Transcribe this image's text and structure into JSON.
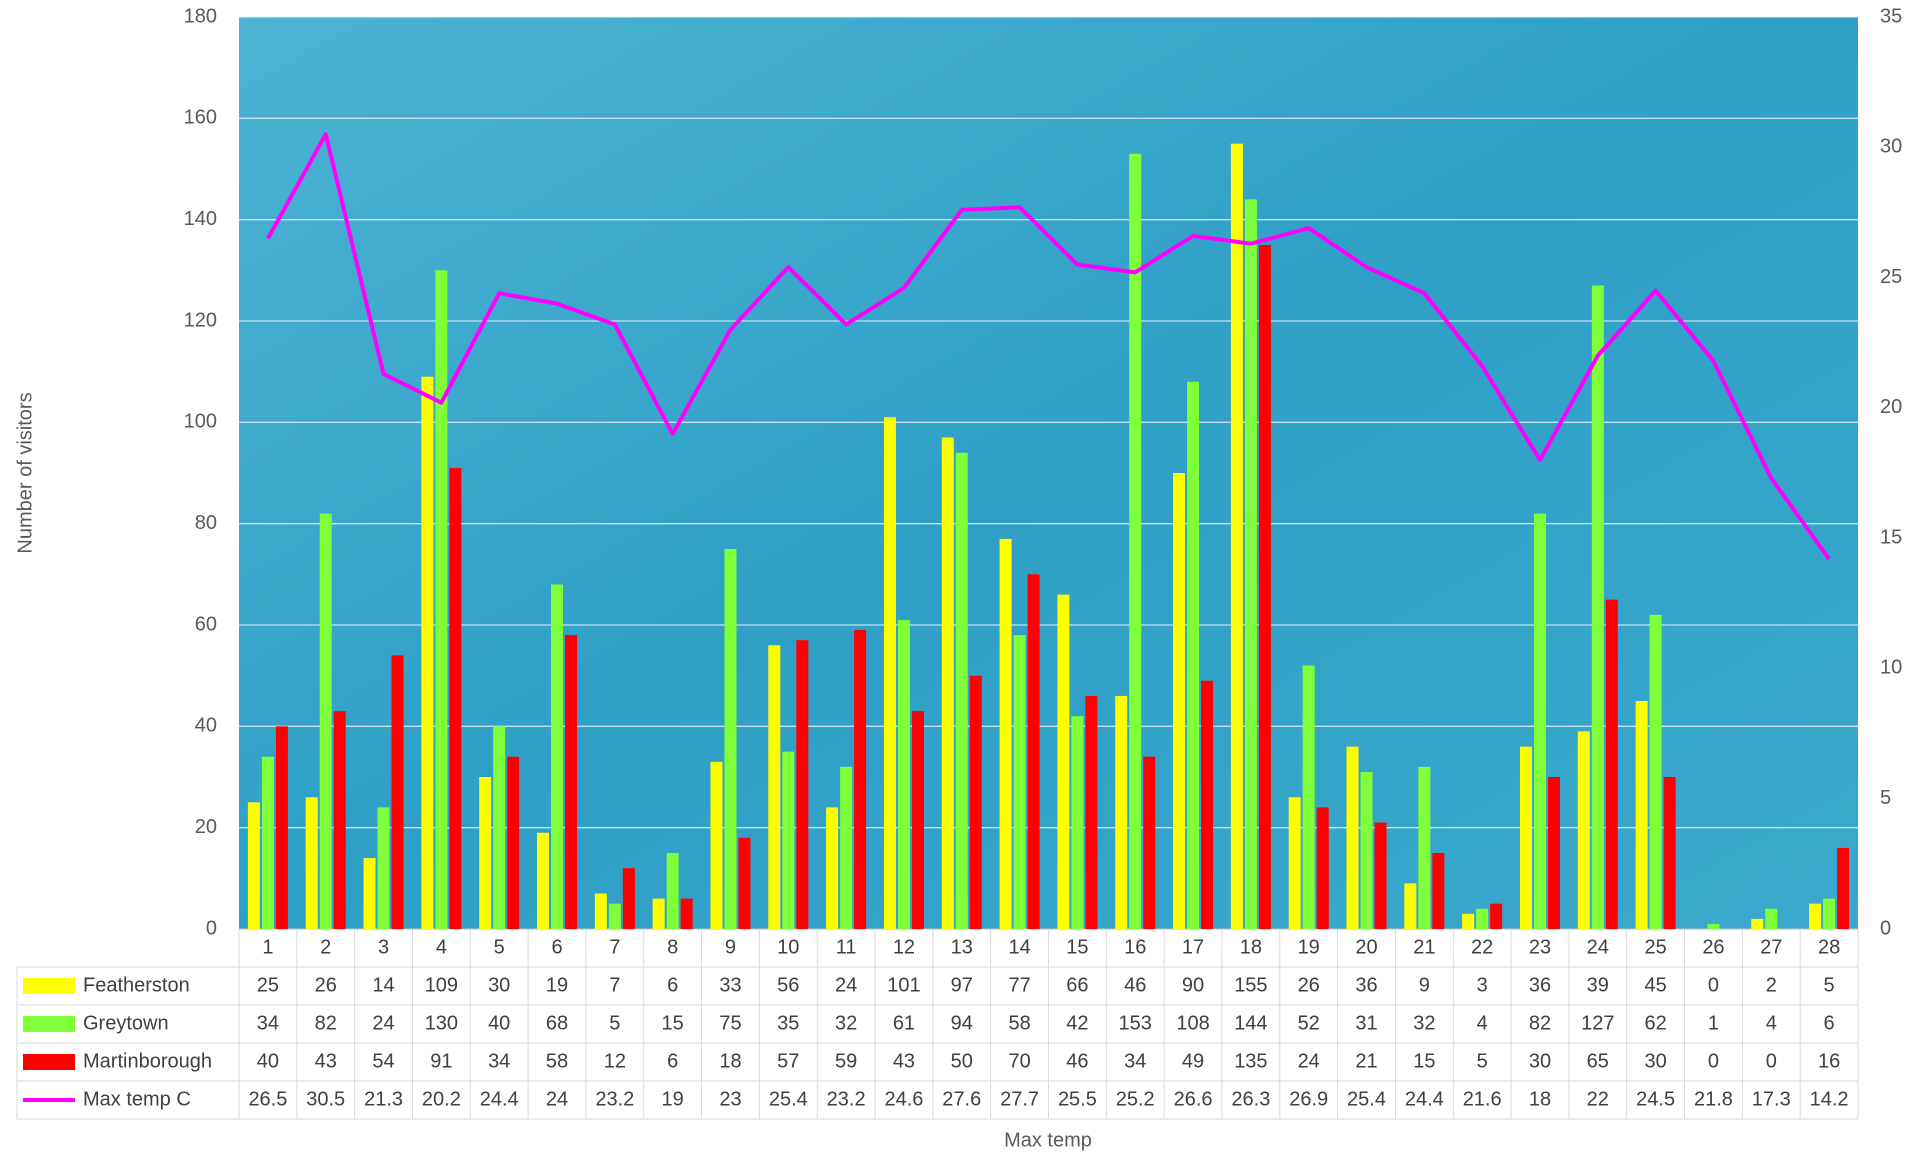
{
  "chart_data": {
    "type": "bar",
    "x_label": "Max temp",
    "y_label": "Number of visitors",
    "categories": [
      "1",
      "2",
      "3",
      "4",
      "5",
      "6",
      "7",
      "8",
      "9",
      "10",
      "11",
      "12",
      "13",
      "14",
      "15",
      "16",
      "17",
      "18",
      "19",
      "20",
      "21",
      "22",
      "23",
      "24",
      "25",
      "26",
      "27",
      "28"
    ],
    "series": [
      {
        "name": "Featherston",
        "color": "#ffff00",
        "type": "bar",
        "values": [
          25,
          26,
          14,
          109,
          30,
          19,
          7,
          6,
          33,
          56,
          24,
          101,
          97,
          77,
          66,
          46,
          90,
          155,
          26,
          36,
          9,
          3,
          36,
          39,
          45,
          0,
          2,
          5
        ]
      },
      {
        "name": "Greytown",
        "color": "#7fff3a",
        "type": "bar",
        "values": [
          34,
          82,
          24,
          130,
          40,
          68,
          5,
          15,
          75,
          35,
          32,
          61,
          94,
          58,
          42,
          153,
          108,
          144,
          52,
          31,
          32,
          4,
          82,
          127,
          62,
          1,
          4,
          6
        ]
      },
      {
        "name": "Martinborough",
        "color": "#ff0000",
        "type": "bar",
        "values": [
          40,
          43,
          54,
          91,
          34,
          58,
          12,
          6,
          18,
          57,
          59,
          43,
          50,
          70,
          46,
          34,
          49,
          135,
          24,
          21,
          15,
          5,
          30,
          65,
          30,
          0,
          0,
          16
        ]
      },
      {
        "name": "Max temp C",
        "color": "#ff00ff",
        "type": "line",
        "axis": "y2",
        "values": [
          26.5,
          30.5,
          21.3,
          20.2,
          24.4,
          24,
          23.2,
          19,
          23,
          25.4,
          23.2,
          24.6,
          27.6,
          27.7,
          25.5,
          25.2,
          26.6,
          26.3,
          26.9,
          25.4,
          24.4,
          21.6,
          18,
          22,
          24.5,
          21.8,
          17.3,
          14.2
        ]
      }
    ],
    "ylim": [
      0,
      180
    ],
    "yticks": [
      0,
      20,
      40,
      60,
      80,
      100,
      120,
      140,
      160,
      180
    ],
    "y2lim": [
      0,
      35
    ],
    "y2ticks": [
      0,
      5,
      10,
      15,
      20,
      25,
      30,
      35
    ],
    "grid": true
  }
}
